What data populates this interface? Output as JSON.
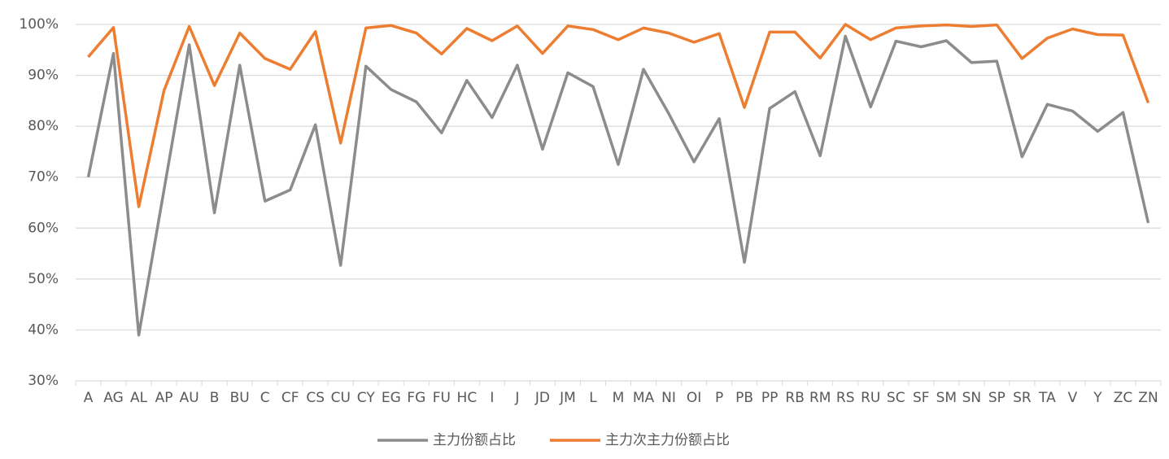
{
  "chart_data": {
    "type": "line",
    "categories": [
      "A",
      "AG",
      "AL",
      "AP",
      "AU",
      "B",
      "BU",
      "C",
      "CF",
      "CS",
      "CU",
      "CY",
      "EG",
      "FG",
      "FU",
      "HC",
      "I",
      "J",
      "JD",
      "JM",
      "L",
      "M",
      "MA",
      "NI",
      "OI",
      "P",
      "PB",
      "PP",
      "RB",
      "RM",
      "RS",
      "RU",
      "SC",
      "SF",
      "SM",
      "SN",
      "SP",
      "SR",
      "TA",
      "V",
      "Y",
      "ZC",
      "ZN"
    ],
    "series": [
      {
        "name": "主力份额占比",
        "color": "#8c8c8c",
        "values": [
          70,
          94.3,
          39,
          67.5,
          96,
          63,
          92,
          65.3,
          67.5,
          80.3,
          52.7,
          91.8,
          87.2,
          84.8,
          78.7,
          89,
          81.7,
          92,
          75.5,
          90.5,
          87.8,
          72.5,
          91.2,
          82.5,
          73,
          81.5,
          53.3,
          83.5,
          86.8,
          74.2,
          97.7,
          83.8,
          96.7,
          95.6,
          96.8,
          92.5,
          92.8,
          74,
          84.3,
          83,
          79,
          82.7,
          61
        ]
      },
      {
        "name": "主力次主力份额占比",
        "color": "#ed7d31",
        "values": [
          93.6,
          99.4,
          64.2,
          87,
          99.6,
          88,
          98.3,
          93.3,
          91.2,
          98.6,
          76.7,
          99.3,
          99.8,
          98.3,
          94.2,
          99.2,
          96.8,
          99.7,
          94.3,
          99.7,
          99,
          97,
          99.3,
          98.3,
          96.5,
          98.2,
          83.7,
          98.5,
          98.5,
          93.4,
          100,
          97,
          99.3,
          99.7,
          99.9,
          99.6,
          99.9,
          93.3,
          97.3,
          99.1,
          98,
          97.9,
          84.6
        ]
      }
    ],
    "ylim": [
      30,
      100
    ],
    "yticks": [
      {
        "value": 30,
        "label": "30%"
      },
      {
        "value": 40,
        "label": "40%"
      },
      {
        "value": 50,
        "label": "50%"
      },
      {
        "value": 60,
        "label": "60%"
      },
      {
        "value": 70,
        "label": "70%"
      },
      {
        "value": 80,
        "label": "80%"
      },
      {
        "value": 90,
        "label": "90%"
      },
      {
        "value": 100,
        "label": "100%"
      }
    ],
    "grid": true,
    "legend": "bottom"
  }
}
